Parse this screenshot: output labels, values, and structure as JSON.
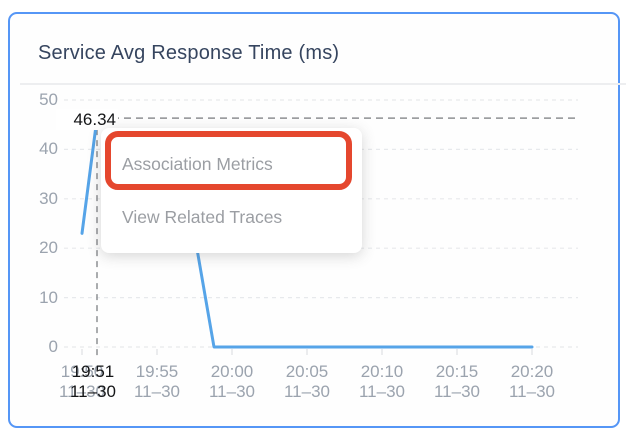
{
  "card": {
    "title": "Service Avg Response Time (ms)"
  },
  "context_menu": {
    "items": [
      {
        "label": "Association Metrics",
        "highlighted": true
      },
      {
        "label": "View Related Traces",
        "highlighted": false
      }
    ]
  },
  "tooltip": {
    "value_label": "46.34",
    "time": "19:51",
    "date": "11–30"
  },
  "colors": {
    "card_border": "#5596F6",
    "title_text": "#36455F",
    "axis_text": "#9BA3AE",
    "grid_line": "#E7E9EC",
    "pointer_dash": "#8E9093",
    "series_line": "#56A4E8",
    "menu_text": "#9B9EA3",
    "annotation_red": "#E5472E",
    "pointer_label_text": "#141517"
  },
  "chart_data": {
    "type": "line",
    "title": "Service Avg Response Time (ms)",
    "xlabel": "",
    "ylabel": "ms",
    "ylim": [
      0,
      50
    ],
    "y_ticks": [
      0,
      10,
      20,
      30,
      40,
      50
    ],
    "grid": "horizontal-dashed",
    "legend": "none",
    "x_ticks": [
      {
        "m": 0,
        "time": "19:50",
        "date": "11–30"
      },
      {
        "m": 5,
        "time": "19:55",
        "date": "11–30"
      },
      {
        "m": 10,
        "time": "20:00",
        "date": "11–30"
      },
      {
        "m": 15,
        "time": "20:05",
        "date": "11–30"
      },
      {
        "m": 20,
        "time": "20:10",
        "date": "11–30"
      },
      {
        "m": 25,
        "time": "20:15",
        "date": "11–30"
      },
      {
        "m": 30,
        "time": "20:20",
        "date": "11–30"
      }
    ],
    "series": [
      {
        "name": "Service Avg Response Time",
        "color": "#56A4E8",
        "points": [
          {
            "m": 0,
            "time": "19:50",
            "value": 23
          },
          {
            "m": 1,
            "time": "19:51",
            "value": 46.34
          },
          {
            "m": 7.6,
            "time": "19:57",
            "value": 21
          },
          {
            "m": 8.8,
            "time": "19:59",
            "value": 0
          },
          {
            "m": 30,
            "time": "20:20",
            "value": 0
          }
        ]
      }
    ],
    "selected_point": {
      "m": 1,
      "time": "19:51",
      "date": "11–30",
      "value": 46.34
    }
  }
}
